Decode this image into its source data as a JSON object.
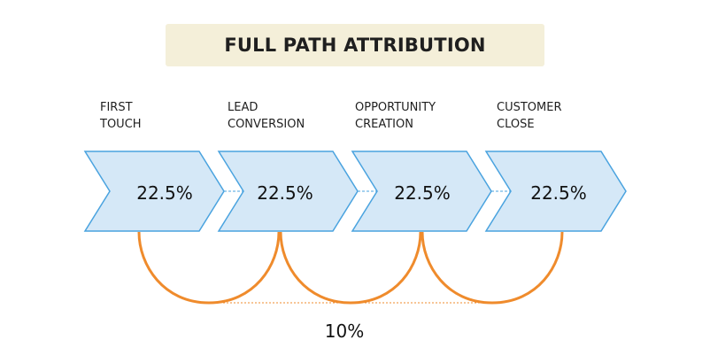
{
  "title": "FULL PATH ATTRIBUTION",
  "stages": [
    {
      "line1": "FIRST",
      "line2": "TOUCH",
      "value": "22.5%"
    },
    {
      "line1": "LEAD",
      "line2": "CONVERSION",
      "value": "22.5%"
    },
    {
      "line1": "OPPORTUNITY",
      "line2": "CREATION",
      "value": "22.5%"
    },
    {
      "line1": "CUSTOMER",
      "line2": "CLOSE",
      "value": "22.5%"
    }
  ],
  "middle_share": "10%",
  "colors": {
    "chevron_fill": "#d5e8f7",
    "chevron_stroke": "#4aa3df",
    "arc": "#ef8b2c",
    "banner": "#f4efd9"
  }
}
